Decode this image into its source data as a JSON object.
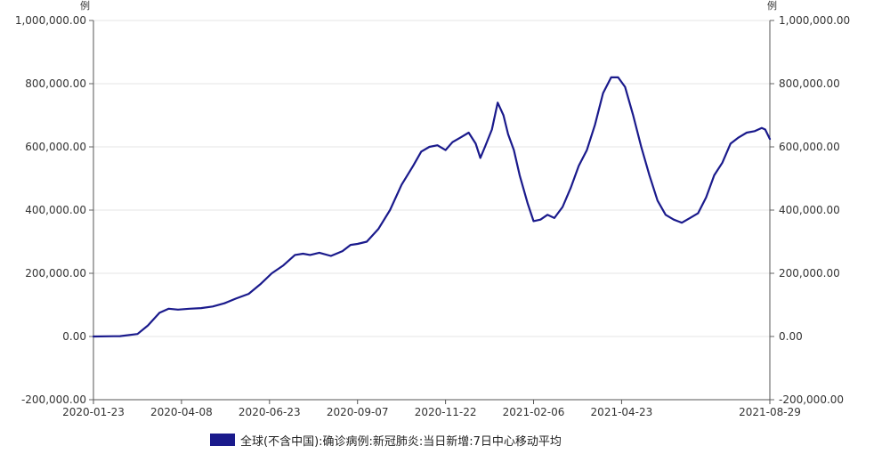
{
  "chart_data": {
    "type": "line",
    "unit_left": "例",
    "unit_right": "例",
    "y_ticks": [
      "1,000,000.00",
      "800,000.00",
      "600,000.00",
      "400,000.00",
      "200,000.00",
      "0.00",
      "-200,000.00"
    ],
    "y_tick_values": [
      1000000,
      800000,
      600000,
      400000,
      200000,
      0,
      -200000
    ],
    "ylim": [
      -200000,
      1000000
    ],
    "x_ticks": [
      "2020-01-23",
      "2020-04-08",
      "2020-06-23",
      "2020-09-07",
      "2020-11-22",
      "2021-02-06",
      "2021-04-23",
      "2021-08-29"
    ],
    "grid": true,
    "legend_position": "bottom",
    "color": "#1a1a8c",
    "series": [
      {
        "name": "全球(不含中国):确诊病例:新冠肺炎:当日新增:7日中心移动平均",
        "x": [
          "2020-01-23",
          "2020-02-15",
          "2020-03-01",
          "2020-03-10",
          "2020-03-20",
          "2020-03-28",
          "2020-04-05",
          "2020-04-15",
          "2020-04-25",
          "2020-05-05",
          "2020-05-15",
          "2020-05-25",
          "2020-06-05",
          "2020-06-15",
          "2020-06-25",
          "2020-07-05",
          "2020-07-15",
          "2020-07-22",
          "2020-07-28",
          "2020-08-05",
          "2020-08-15",
          "2020-08-25",
          "2020-09-01",
          "2020-09-07",
          "2020-09-15",
          "2020-09-25",
          "2020-10-05",
          "2020-10-15",
          "2020-10-25",
          "2020-11-01",
          "2020-11-08",
          "2020-11-15",
          "2020-11-22",
          "2020-11-28",
          "2020-12-05",
          "2020-12-12",
          "2020-12-18",
          "2020-12-22",
          "2020-12-26",
          "2021-01-01",
          "2021-01-06",
          "2021-01-11",
          "2021-01-15",
          "2021-01-20",
          "2021-01-25",
          "2021-02-01",
          "2021-02-06",
          "2021-02-12",
          "2021-02-18",
          "2021-02-24",
          "2021-03-03",
          "2021-03-10",
          "2021-03-17",
          "2021-03-24",
          "2021-03-31",
          "2021-04-07",
          "2021-04-14",
          "2021-04-20",
          "2021-04-26",
          "2021-05-03",
          "2021-05-10",
          "2021-05-17",
          "2021-05-24",
          "2021-05-31",
          "2021-06-07",
          "2021-06-14",
          "2021-06-21",
          "2021-06-28",
          "2021-07-05",
          "2021-07-12",
          "2021-07-19",
          "2021-07-26",
          "2021-08-02",
          "2021-08-09",
          "2021-08-16",
          "2021-08-22",
          "2021-08-25",
          "2021-08-29"
        ],
        "values": [
          0,
          1000,
          8000,
          35000,
          75000,
          88000,
          85000,
          88000,
          90000,
          95000,
          105000,
          120000,
          135000,
          165000,
          200000,
          225000,
          258000,
          262000,
          258000,
          265000,
          255000,
          270000,
          290000,
          293000,
          300000,
          340000,
          400000,
          480000,
          540000,
          585000,
          600000,
          605000,
          590000,
          615000,
          630000,
          645000,
          610000,
          565000,
          600000,
          655000,
          740000,
          700000,
          640000,
          590000,
          510000,
          420000,
          365000,
          370000,
          385000,
          375000,
          410000,
          470000,
          540000,
          590000,
          670000,
          770000,
          820000,
          820000,
          790000,
          700000,
          600000,
          510000,
          430000,
          385000,
          370000,
          360000,
          375000,
          390000,
          440000,
          510000,
          550000,
          610000,
          630000,
          645000,
          650000,
          660000,
          655000,
          625000
        ]
      }
    ]
  }
}
